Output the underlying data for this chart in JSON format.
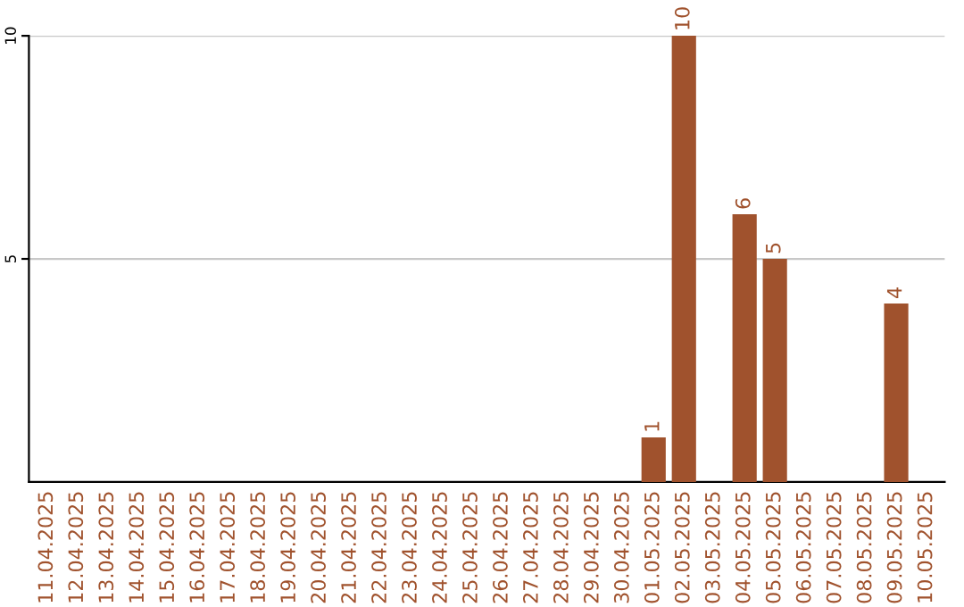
{
  "chart_data": {
    "type": "bar",
    "categories": [
      "11.04.2025",
      "12.04.2025",
      "13.04.2025",
      "14.04.2025",
      "15.04.2025",
      "16.04.2025",
      "17.04.2025",
      "18.04.2025",
      "19.04.2025",
      "20.04.2025",
      "21.04.2025",
      "22.04.2025",
      "23.04.2025",
      "24.04.2025",
      "25.04.2025",
      "26.04.2025",
      "27.04.2025",
      "28.04.2025",
      "29.04.2025",
      "30.04.2025",
      "01.05.2025",
      "02.05.2025",
      "03.05.2025",
      "04.05.2025",
      "05.05.2025",
      "06.05.2025",
      "07.05.2025",
      "08.05.2025",
      "09.05.2025",
      "10.05.2025"
    ],
    "values": [
      0,
      0,
      0,
      0,
      0,
      0,
      0,
      0,
      0,
      0,
      0,
      0,
      0,
      0,
      0,
      0,
      0,
      0,
      0,
      0,
      1,
      10,
      0,
      6,
      5,
      0,
      0,
      0,
      4,
      0
    ],
    "value_labels": [
      null,
      null,
      null,
      null,
      null,
      null,
      null,
      null,
      null,
      null,
      null,
      null,
      null,
      null,
      null,
      null,
      null,
      null,
      null,
      null,
      "1",
      "10",
      null,
      "6",
      "5",
      null,
      null,
      null,
      "4",
      null
    ],
    "color": "#a0522d",
    "ylim": [
      0,
      10
    ],
    "yticks": [
      5,
      10
    ],
    "grid": "y"
  }
}
